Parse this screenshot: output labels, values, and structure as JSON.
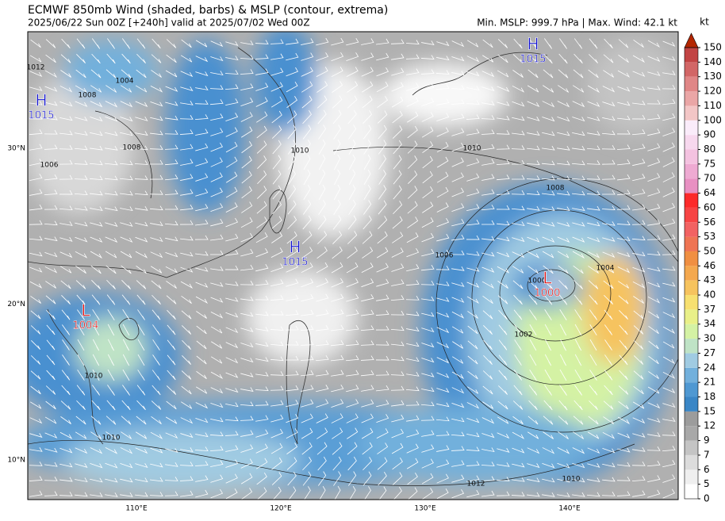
{
  "header": {
    "title": "ECMWF 850mb Wind (shaded, barbs) & MSLP (contour, extrema)",
    "subtitle": "2025/06/22 Sun 00Z [+240h] valid at 2025/07/02 Wed 00Z",
    "stats": "Min. MSLP: 999.7 hPa | Max. Wind: 42.1 kt"
  },
  "axes": {
    "lat_labels": [
      "30°N",
      "20°N",
      "10°N"
    ],
    "lon_labels": [
      "110°E",
      "120°E",
      "130°E",
      "140°E"
    ]
  },
  "pressure_centers": [
    {
      "kind": "H",
      "value": "1015"
    },
    {
      "kind": "H",
      "value": "1015"
    },
    {
      "kind": "H",
      "value": "1015"
    },
    {
      "kind": "L",
      "value": "1004"
    },
    {
      "kind": "L",
      "value": "1000"
    }
  ],
  "contour_labels": [
    "1012",
    "1004",
    "1008",
    "1008",
    "1006",
    "1010",
    "1010",
    "1008",
    "1006",
    "1004",
    "1002",
    "1000",
    "1010",
    "1010",
    "1012",
    "1010"
  ],
  "colorbar": {
    "unit": "kt",
    "ticks": [
      0,
      5,
      6,
      7,
      9,
      12,
      15,
      18,
      21,
      24,
      27,
      30,
      34,
      37,
      40,
      43,
      46,
      50,
      53,
      56,
      60,
      64,
      70,
      75,
      80,
      90,
      100,
      110,
      120,
      130,
      140,
      150
    ],
    "colors": [
      "#ffffff",
      "#efefef",
      "#dcdcdc",
      "#c4c4c4",
      "#a8a8a8",
      "#9c9c9c",
      "#3a86c6",
      "#4f98d2",
      "#72b0dc",
      "#a0cbe2",
      "#bfe3c6",
      "#d4f2a4",
      "#e9f088",
      "#f7e070",
      "#f6c35e",
      "#f4a84e",
      "#f08f42",
      "#ef7453",
      "#f26262",
      "#f74444",
      "#fc2a2a",
      "#e890c2",
      "#eeaad2",
      "#f4c2e0",
      "#f7d8ee",
      "#faecfa",
      "#f3c6c6",
      "#eaa6a6",
      "#e08686",
      "#d26666",
      "#c24444"
    ],
    "over_color": "#b32600"
  }
}
